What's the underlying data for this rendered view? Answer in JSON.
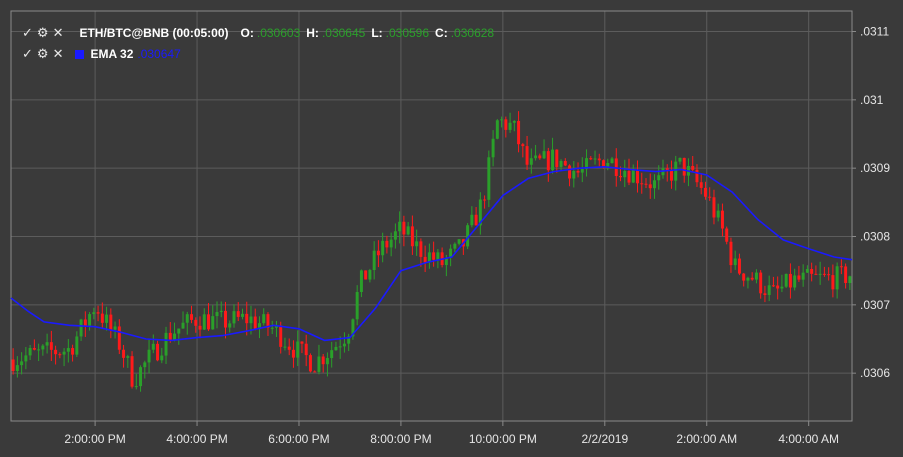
{
  "legend": {
    "symbol": "ETH/BTC@BNB (00:05:00)",
    "o_label": "O:",
    "o_value": ".030603",
    "h_label": "H:",
    "h_value": ".030645",
    "l_label": "L:",
    "l_value": ".030596",
    "c_label": "C:",
    "c_value": ".030628",
    "ema_label": "EMA 32",
    "ema_value": ".030647",
    "ema_color": "#1a1aff",
    "up_color": "#2aa02a",
    "down_color": "#ff1a1a",
    "icons": [
      "check-icon",
      "gear-icon",
      "close-icon"
    ]
  },
  "chart_data": {
    "type": "candlestick",
    "title": "",
    "xlabel": "",
    "ylabel": "",
    "ylim": [
      0.03053,
      0.03113
    ],
    "y_ticks": [
      ".0306",
      ".0307",
      ".0308",
      ".0309",
      ".031",
      ".0311"
    ],
    "y_tick_values": [
      0.0306,
      0.0307,
      0.0308,
      0.0309,
      0.031,
      0.0311
    ],
    "x_ticks": [
      "2:00:00 PM",
      "4:00:00 PM",
      "6:00:00 PM",
      "8:00:00 PM",
      "10:00:00 PM",
      "2/2/2019",
      "2:00:00 AM",
      "4:00:00 AM"
    ],
    "x_tick_hours": [
      14,
      16,
      18,
      20,
      22,
      24,
      26,
      28
    ],
    "x_range_hours": [
      12.35,
      28.85
    ],
    "candle_interval_minutes": 5,
    "grid": true,
    "ema_series": {
      "name": "EMA 32",
      "points": [
        [
          12.35,
          0.03071
        ],
        [
          12.7,
          0.03069
        ],
        [
          13.0,
          0.030675
        ],
        [
          13.5,
          0.03067
        ],
        [
          14.0,
          0.030668
        ],
        [
          14.5,
          0.03066
        ],
        [
          15.0,
          0.03065
        ],
        [
          15.5,
          0.030648
        ],
        [
          16.0,
          0.030652
        ],
        [
          16.5,
          0.030655
        ],
        [
          17.0,
          0.030662
        ],
        [
          17.5,
          0.03067
        ],
        [
          18.0,
          0.030665
        ],
        [
          18.5,
          0.030648
        ],
        [
          19.0,
          0.030652
        ],
        [
          19.5,
          0.030695
        ],
        [
          20.0,
          0.03075
        ],
        [
          20.5,
          0.030762
        ],
        [
          21.0,
          0.03077
        ],
        [
          21.5,
          0.030815
        ],
        [
          22.0,
          0.03086
        ],
        [
          22.5,
          0.030885
        ],
        [
          23.0,
          0.030895
        ],
        [
          23.5,
          0.0309
        ],
        [
          24.0,
          0.030902
        ],
        [
          24.5,
          0.030898
        ],
        [
          25.0,
          0.030895
        ],
        [
          25.5,
          0.030898
        ],
        [
          26.0,
          0.03089
        ],
        [
          26.5,
          0.030865
        ],
        [
          27.0,
          0.030825
        ],
        [
          27.5,
          0.030795
        ],
        [
          28.0,
          0.030782
        ],
        [
          28.5,
          0.03077
        ],
        [
          28.85,
          0.030766
        ]
      ]
    },
    "candle_path": [
      [
        12.35,
        0.03062
      ],
      [
        13.0,
        0.03063
      ],
      [
        13.5,
        0.030635
      ],
      [
        14.0,
        0.0307
      ],
      [
        14.5,
        0.03064
      ],
      [
        14.75,
        0.03059
      ],
      [
        15.1,
        0.030625
      ],
      [
        15.5,
        0.03066
      ],
      [
        16.0,
        0.03068
      ],
      [
        16.5,
        0.030675
      ],
      [
        17.0,
        0.03068
      ],
      [
        17.5,
        0.030665
      ],
      [
        18.0,
        0.03063
      ],
      [
        18.3,
        0.030615
      ],
      [
        18.7,
        0.03064
      ],
      [
        18.95,
        0.03066
      ],
      [
        19.2,
        0.03073
      ],
      [
        19.6,
        0.03078
      ],
      [
        20.0,
        0.03081
      ],
      [
        20.3,
        0.030785
      ],
      [
        20.8,
        0.03076
      ],
      [
        21.2,
        0.030785
      ],
      [
        21.6,
        0.03085
      ],
      [
        21.9,
        0.03097
      ],
      [
        22.2,
        0.03096
      ],
      [
        22.5,
        0.0309
      ],
      [
        23.0,
        0.030915
      ],
      [
        23.5,
        0.030892
      ],
      [
        24.0,
        0.030915
      ],
      [
        24.5,
        0.030895
      ],
      [
        25.0,
        0.030875
      ],
      [
        25.5,
        0.030905
      ],
      [
        26.0,
        0.03086
      ],
      [
        26.3,
        0.03081
      ],
      [
        26.55,
        0.030755
      ],
      [
        26.9,
        0.03074
      ],
      [
        27.3,
        0.030715
      ],
      [
        27.7,
        0.030735
      ],
      [
        28.2,
        0.030738
      ],
      [
        28.6,
        0.03074
      ],
      [
        28.85,
        0.030745
      ]
    ],
    "last_candle": {
      "open": 0.030603,
      "high": 0.030645,
      "low": 0.030596,
      "close": 0.030628
    }
  }
}
